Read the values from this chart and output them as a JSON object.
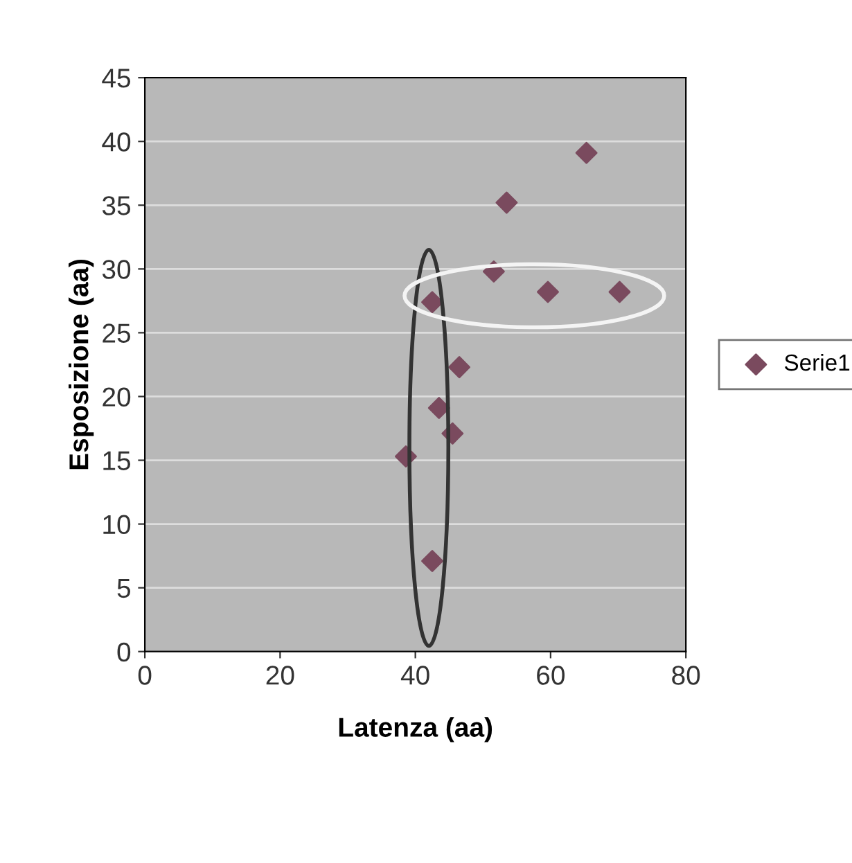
{
  "chart_data": {
    "type": "scatter",
    "xlabel": "Latenza (aa)",
    "ylabel": "Esposizione (aa)",
    "x": [
      38.6,
      42.5,
      42.5,
      43.5,
      45.5,
      46.5,
      51.6,
      53.5,
      59.6,
      65.3,
      70.2
    ],
    "series": [
      {
        "name": "Serie1",
        "color": "#7a4a5e",
        "values": [
          15.3,
          27.4,
          7.1,
          19.1,
          17.1,
          22.3,
          29.8,
          35.2,
          28.2,
          39.1,
          28.2
        ]
      }
    ],
    "xlim": [
      0,
      80
    ],
    "xticks": [
      0,
      20,
      40,
      60,
      80
    ],
    "ylim": [
      0,
      45
    ],
    "yticks": [
      0,
      5,
      10,
      15,
      20,
      25,
      30,
      35,
      40,
      45
    ],
    "grid": "y",
    "legend": "right",
    "marker": "diamond"
  }
}
